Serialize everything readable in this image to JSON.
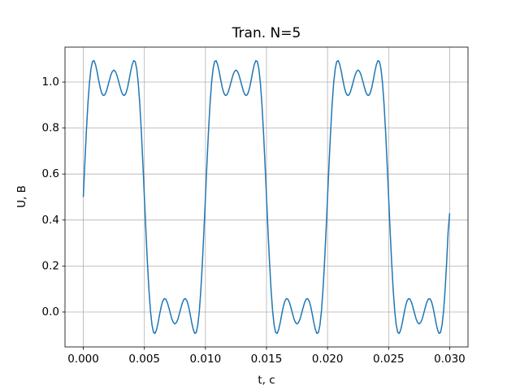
{
  "chart_data": {
    "type": "line",
    "title": "Tran. N=5",
    "xlabel": "t, c",
    "ylabel": "U, B",
    "color": "#1f77b4",
    "grid": true,
    "xlim": [
      -0.0015,
      0.0315
    ],
    "ylim": [
      -0.152,
      1.152
    ],
    "xticks": [
      {
        "value": 0,
        "label": "0.000"
      },
      {
        "value": 0.005,
        "label": "0.005"
      },
      {
        "value": 0.01,
        "label": "0.010"
      },
      {
        "value": 0.015,
        "label": "0.015"
      },
      {
        "value": 0.02,
        "label": "0.020"
      },
      {
        "value": 0.025,
        "label": "0.025"
      },
      {
        "value": 0.03,
        "label": "0.030"
      }
    ],
    "yticks": [
      {
        "value": 0,
        "label": "0.0"
      },
      0.2,
      0.4,
      0.6,
      0.8,
      {
        "value": 1,
        "label": "1.0"
      }
    ],
    "x": [
      0,
      0.000125,
      0.00025,
      0.000375,
      0.0005,
      0.000625,
      0.00075,
      0.000875,
      0.001,
      0.001125,
      0.00125,
      0.001375,
      0.0015,
      0.001625,
      0.00175,
      0.001875,
      0.002,
      0.002125,
      0.00225,
      0.002375,
      0.0025,
      0.002625,
      0.00275,
      0.002875,
      0.003,
      0.003125,
      0.00325,
      0.003375,
      0.0035,
      0.003625,
      0.00375,
      0.003875,
      0.004,
      0.004125,
      0.00425,
      0.004375,
      0.0045,
      0.004625,
      0.00475,
      0.004875,
      0.005,
      0.005125,
      0.00525,
      0.005375,
      0.0055,
      0.005625,
      0.00575,
      0.005875,
      0.006,
      0.006125,
      0.00625,
      0.006375,
      0.0065,
      0.006625,
      0.00675,
      0.006875,
      0.007,
      0.007125,
      0.00725,
      0.007375,
      0.0075,
      0.007625,
      0.00775,
      0.007875,
      0.008,
      0.008125,
      0.00825,
      0.008375,
      0.0085,
      0.008625,
      0.00875,
      0.008875,
      0.009,
      0.009125,
      0.00925,
      0.009375,
      0.0095,
      0.009625,
      0.00975,
      0.009875,
      0.01,
      0.010125,
      0.01025,
      0.010375,
      0.0105,
      0.010625,
      0.01075,
      0.010875,
      0.011,
      0.011125,
      0.01125,
      0.011375,
      0.0115,
      0.011625,
      0.01175,
      0.011875,
      0.012,
      0.012125,
      0.01225,
      0.012375,
      0.0125,
      0.012625,
      0.01275,
      0.012875,
      0.013,
      0.013125,
      0.01325,
      0.013375,
      0.0135,
      0.013625,
      0.01375,
      0.013875,
      0.014,
      0.014125,
      0.01425,
      0.014375,
      0.0145,
      0.014625,
      0.01475,
      0.014875,
      0.015,
      0.015125,
      0.01525,
      0.015375,
      0.0155,
      0.015625,
      0.01575,
      0.015875,
      0.016,
      0.016125,
      0.01625,
      0.016375,
      0.0165,
      0.016625,
      0.01675,
      0.016875,
      0.017,
      0.017125,
      0.01725,
      0.017375,
      0.0175,
      0.017625,
      0.01775,
      0.017875,
      0.018,
      0.018125,
      0.01825,
      0.018375,
      0.0185,
      0.018625,
      0.01875,
      0.018875,
      0.019,
      0.019125,
      0.01925,
      0.019375,
      0.0195,
      0.019625,
      0.01975,
      0.019875,
      0.02,
      0.020125,
      0.02025,
      0.020375,
      0.0205,
      0.020625,
      0.02075,
      0.020875,
      0.021,
      0.021125,
      0.02125,
      0.021375,
      0.0215,
      0.021625,
      0.02175,
      0.021875,
      0.022,
      0.022125,
      0.02225,
      0.022375,
      0.0225,
      0.022625,
      0.02275,
      0.022875,
      0.023,
      0.023125,
      0.02325,
      0.023375,
      0.0235,
      0.023625,
      0.02375,
      0.023875,
      0.024,
      0.024125,
      0.02425,
      0.024375,
      0.0245,
      0.024625,
      0.02475,
      0.024875,
      0.025,
      0.025125,
      0.02525,
      0.025375,
      0.0255,
      0.025625,
      0.02575,
      0.025875,
      0.026,
      0.026125,
      0.02625,
      0.026375,
      0.0265,
      0.026625,
      0.02675,
      0.026875,
      0.027,
      0.027125,
      0.02725,
      0.027375,
      0.0275,
      0.027625,
      0.02775,
      0.027875,
      0.028,
      0.028125,
      0.02825,
      0.028375,
      0.0285,
      0.028625,
      0.02875,
      0.028875,
      0.029,
      0.029125,
      0.02925,
      0.029375,
      0.0295,
      0.029625,
      0.02975,
      0.029875,
      0.03
    ],
    "values": [
      0.5,
      0.648,
      0.786,
      0.904,
      0.996,
      1.057,
      1.089,
      1.093,
      1.076,
      1.046,
      1.01,
      0.977,
      0.953,
      0.942,
      0.944,
      0.958,
      0.981,
      1.006,
      1.03,
      1.046,
      1.052,
      1.046,
      1.03,
      1.006,
      0.981,
      0.958,
      0.944,
      0.942,
      0.953,
      0.977,
      1.01,
      1.046,
      1.076,
      1.093,
      1.089,
      1.057,
      0.996,
      0.904,
      0.786,
      0.648,
      0.5,
      0.352,
      0.214,
      0.096,
      0.004,
      -0.057,
      -0.089,
      -0.093,
      -0.076,
      -0.046,
      -0.01,
      0.023,
      0.047,
      0.058,
      0.056,
      0.042,
      0.019,
      -0.006,
      -0.03,
      -0.046,
      -0.052,
      -0.046,
      -0.03,
      -0.006,
      0.019,
      0.042,
      0.056,
      0.058,
      0.047,
      0.023,
      -0.01,
      -0.046,
      -0.076,
      -0.093,
      -0.089,
      -0.057,
      0.004,
      0.096,
      0.214,
      0.352,
      0.5,
      0.648,
      0.786,
      0.904,
      0.996,
      1.057,
      1.089,
      1.093,
      1.076,
      1.046,
      1.01,
      0.977,
      0.953,
      0.942,
      0.944,
      0.958,
      0.981,
      1.006,
      1.03,
      1.046,
      1.052,
      1.046,
      1.03,
      1.006,
      0.981,
      0.958,
      0.944,
      0.942,
      0.953,
      0.977,
      1.01,
      1.046,
      1.076,
      1.093,
      1.089,
      1.057,
      0.996,
      0.904,
      0.786,
      0.648,
      0.5,
      0.352,
      0.214,
      0.096,
      0.004,
      -0.057,
      -0.089,
      -0.093,
      -0.076,
      -0.046,
      -0.01,
      0.023,
      0.047,
      0.058,
      0.056,
      0.042,
      0.019,
      -0.006,
      -0.03,
      -0.046,
      -0.052,
      -0.046,
      -0.03,
      -0.006,
      0.019,
      0.042,
      0.056,
      0.058,
      0.047,
      0.023,
      -0.01,
      -0.046,
      -0.076,
      -0.093,
      -0.089,
      -0.057,
      0.004,
      0.096,
      0.214,
      0.352,
      0.5,
      0.648,
      0.786,
      0.904,
      0.996,
      1.057,
      1.089,
      1.093,
      1.076,
      1.046,
      1.01,
      0.977,
      0.953,
      0.942,
      0.944,
      0.958,
      0.981,
      1.006,
      1.03,
      1.046,
      1.052,
      1.046,
      1.03,
      1.006,
      0.981,
      0.958,
      0.944,
      0.942,
      0.953,
      0.977,
      1.01,
      1.046,
      1.076,
      1.093,
      1.089,
      1.057,
      0.996,
      0.904,
      0.786,
      0.648,
      0.5,
      0.352,
      0.214,
      0.096,
      0.004,
      -0.057,
      -0.089,
      -0.093,
      -0.076,
      -0.046,
      -0.01,
      0.023,
      0.047,
      0.058,
      0.056,
      0.042,
      0.019,
      -0.006,
      -0.03,
      -0.046,
      -0.052,
      -0.046,
      -0.03,
      -0.006,
      0.019,
      0.042,
      0.056,
      0.058,
      0.047,
      0.023,
      -0.01,
      -0.046,
      -0.076,
      -0.093,
      -0.089,
      -0.057,
      0.004,
      0.096,
      0.214,
      0.352,
      0.43
    ]
  }
}
